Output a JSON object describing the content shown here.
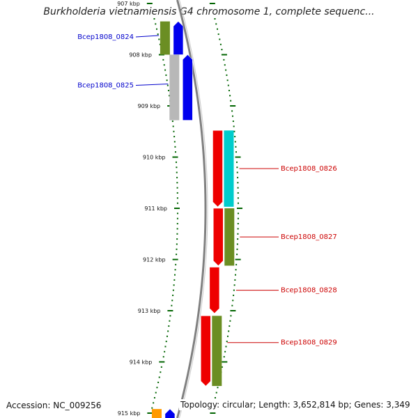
{
  "title": "Burkholderia vietnamiensis G4 chromosome 1, complete sequenc...",
  "footer": {
    "accession": "Accession: NC_009256",
    "topology": "Topology: circular; Length: 3,652,814 bp; Genes: 3,349"
  },
  "colors": {
    "backbone": "#808080",
    "forward_gene": "#0000ee",
    "reverse_gene": "#ee0000",
    "olive": "#6b8e23",
    "cyan": "#00cccc",
    "gray": "#b8b8b8",
    "orange": "#ff9900",
    "tick": "#006400",
    "forward_label": "#0000cc",
    "reverse_label": "#cc0000"
  },
  "axis": {
    "unit": "kbp",
    "ticks": [
      {
        "kbp": 907,
        "label": "907 kbp"
      },
      {
        "kbp": 908,
        "label": "908 kbp"
      },
      {
        "kbp": 909,
        "label": "909 kbp"
      },
      {
        "kbp": 910,
        "label": "910 kbp"
      },
      {
        "kbp": 911,
        "label": "911 kbp"
      },
      {
        "kbp": 912,
        "label": "912 kbp"
      },
      {
        "kbp": 913,
        "label": "913 kbp"
      },
      {
        "kbp": 914,
        "label": "914 kbp"
      },
      {
        "kbp": 915,
        "label": "915 kbp"
      }
    ]
  },
  "genes": [
    {
      "name": "Bcep1808_0824",
      "strand": "forward",
      "start_kbp": 907.35,
      "end_kbp": 908.0,
      "color": "#0000ee",
      "cog_color": "#6b8e23"
    },
    {
      "name": "Bcep1808_0825",
      "strand": "forward",
      "start_kbp": 908.0,
      "end_kbp": 909.28,
      "color": "#0000ee",
      "cog_color": "#b8b8b8"
    },
    {
      "name": "Bcep1808_0826",
      "strand": "reverse",
      "start_kbp": 909.48,
      "end_kbp": 910.97,
      "color": "#ee0000",
      "cog_color": "#00cccc"
    },
    {
      "name": "Bcep1808_0827",
      "strand": "reverse",
      "start_kbp": 911.0,
      "end_kbp": 912.12,
      "color": "#ee0000",
      "cog_color": "#6b8e23"
    },
    {
      "name": "Bcep1808_0828",
      "strand": "reverse",
      "start_kbp": 912.15,
      "end_kbp": 913.05,
      "color": "#ee0000",
      "cog_color": null
    },
    {
      "name": "Bcep1808_0829",
      "strand": "reverse",
      "start_kbp": 913.1,
      "end_kbp": 914.47,
      "color": "#ee0000",
      "cog_color": "#6b8e23"
    },
    {
      "name": "",
      "strand": "forward",
      "start_kbp": 914.92,
      "end_kbp": 915.2,
      "color": "#0000ee",
      "cog_color": "#ff9900"
    }
  ]
}
